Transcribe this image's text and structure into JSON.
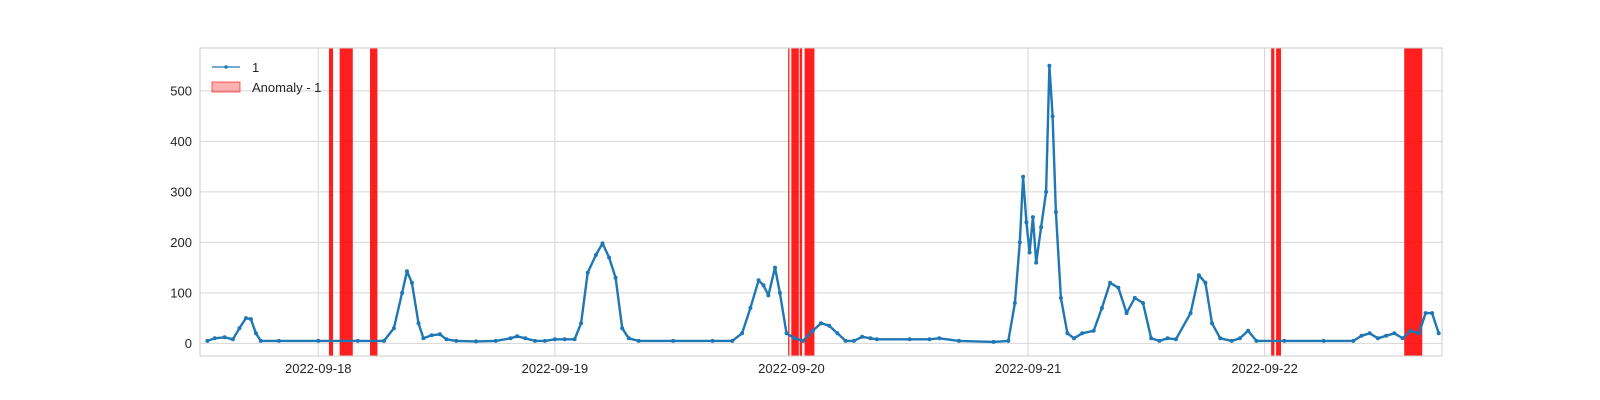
{
  "chart_data": {
    "type": "line",
    "title": "",
    "xlabel": "",
    "ylabel": "",
    "xlim": [
      "2022-09-17T12:00",
      "2022-09-22T18:00"
    ],
    "ylim": [
      -25,
      585
    ],
    "grid": true,
    "legend_placement": "top-left",
    "x_ticks": [
      "2022-09-18",
      "2022-09-19",
      "2022-09-20",
      "2022-09-21",
      "2022-09-22"
    ],
    "y_ticks": [
      0,
      100,
      200,
      300,
      400,
      500
    ],
    "colors": {
      "series": "#1f77b4",
      "anomaly": "#ff0000"
    },
    "series": [
      {
        "name": "1",
        "marker": "dot",
        "points": [
          [
            "2022-09-17T12:45",
            5
          ],
          [
            "2022-09-17T13:30",
            10
          ],
          [
            "2022-09-17T14:30",
            12
          ],
          [
            "2022-09-17T15:20",
            8
          ],
          [
            "2022-09-17T16:00",
            30
          ],
          [
            "2022-09-17T16:40",
            50
          ],
          [
            "2022-09-17T17:10",
            48
          ],
          [
            "2022-09-17T17:40",
            20
          ],
          [
            "2022-09-17T18:10",
            5
          ],
          [
            "2022-09-17T20:00",
            5
          ],
          [
            "2022-09-18T00:00",
            5
          ],
          [
            "2022-09-18T04:00",
            5
          ],
          [
            "2022-09-18T06:40",
            5
          ],
          [
            "2022-09-18T07:40",
            30
          ],
          [
            "2022-09-18T08:30",
            100
          ],
          [
            "2022-09-18T09:00",
            143
          ],
          [
            "2022-09-18T09:30",
            120
          ],
          [
            "2022-09-18T10:10",
            40
          ],
          [
            "2022-09-18T10:40",
            10
          ],
          [
            "2022-09-18T11:30",
            16
          ],
          [
            "2022-09-18T12:20",
            18
          ],
          [
            "2022-09-18T13:00",
            8
          ],
          [
            "2022-09-18T14:00",
            5
          ],
          [
            "2022-09-18T16:00",
            4
          ],
          [
            "2022-09-18T18:00",
            5
          ],
          [
            "2022-09-18T19:30",
            10
          ],
          [
            "2022-09-18T20:10",
            14
          ],
          [
            "2022-09-18T21:00",
            10
          ],
          [
            "2022-09-18T22:00",
            5
          ],
          [
            "2022-09-18T23:00",
            5
          ],
          [
            "2022-09-19T00:00",
            8
          ],
          [
            "2022-09-19T01:00",
            8
          ],
          [
            "2022-09-19T02:00",
            8
          ],
          [
            "2022-09-19T02:40",
            40
          ],
          [
            "2022-09-19T03:20",
            140
          ],
          [
            "2022-09-19T04:10",
            175
          ],
          [
            "2022-09-19T04:50",
            198
          ],
          [
            "2022-09-19T05:30",
            170
          ],
          [
            "2022-09-19T06:10",
            130
          ],
          [
            "2022-09-19T06:50",
            30
          ],
          [
            "2022-09-19T07:30",
            10
          ],
          [
            "2022-09-19T08:30",
            5
          ],
          [
            "2022-09-19T12:00",
            5
          ],
          [
            "2022-09-19T16:00",
            5
          ],
          [
            "2022-09-19T18:00",
            5
          ],
          [
            "2022-09-19T19:00",
            20
          ],
          [
            "2022-09-19T19:50",
            70
          ],
          [
            "2022-09-19T20:40",
            125
          ],
          [
            "2022-09-19T21:10",
            115
          ],
          [
            "2022-09-19T21:40",
            95
          ],
          [
            "2022-09-19T22:20",
            150
          ],
          [
            "2022-09-19T22:50",
            100
          ],
          [
            "2022-09-19T23:30",
            20
          ],
          [
            "2022-09-20T00:20",
            10
          ],
          [
            "2022-09-20T01:10",
            5
          ],
          [
            "2022-09-20T02:10",
            25
          ],
          [
            "2022-09-20T03:00",
            40
          ],
          [
            "2022-09-20T03:50",
            35
          ],
          [
            "2022-09-20T04:40",
            20
          ],
          [
            "2022-09-20T05:30",
            5
          ],
          [
            "2022-09-20T06:20",
            5
          ],
          [
            "2022-09-20T07:10",
            13
          ],
          [
            "2022-09-20T08:00",
            10
          ],
          [
            "2022-09-20T08:40",
            8
          ],
          [
            "2022-09-20T12:00",
            8
          ],
          [
            "2022-09-20T14:00",
            8
          ],
          [
            "2022-09-20T15:00",
            10
          ],
          [
            "2022-09-20T17:00",
            5
          ],
          [
            "2022-09-20T20:30",
            3
          ],
          [
            "2022-09-20T22:00",
            5
          ],
          [
            "2022-09-20T22:40",
            80
          ],
          [
            "2022-09-20T23:10",
            200
          ],
          [
            "2022-09-20T23:30",
            330
          ],
          [
            "2022-09-20T23:50",
            240
          ],
          [
            "2022-09-21T00:10",
            180
          ],
          [
            "2022-09-21T00:30",
            250
          ],
          [
            "2022-09-21T00:50",
            160
          ],
          [
            "2022-09-21T01:20",
            230
          ],
          [
            "2022-09-21T01:50",
            300
          ],
          [
            "2022-09-21T02:10",
            550
          ],
          [
            "2022-09-21T02:30",
            450
          ],
          [
            "2022-09-21T02:50",
            260
          ],
          [
            "2022-09-21T03:20",
            90
          ],
          [
            "2022-09-21T04:00",
            20
          ],
          [
            "2022-09-21T04:40",
            10
          ],
          [
            "2022-09-21T05:30",
            20
          ],
          [
            "2022-09-21T06:40",
            25
          ],
          [
            "2022-09-21T07:30",
            70
          ],
          [
            "2022-09-21T08:20",
            120
          ],
          [
            "2022-09-21T09:10",
            110
          ],
          [
            "2022-09-21T10:00",
            60
          ],
          [
            "2022-09-21T10:50",
            90
          ],
          [
            "2022-09-21T11:40",
            80
          ],
          [
            "2022-09-21T12:30",
            10
          ],
          [
            "2022-09-21T13:20",
            5
          ],
          [
            "2022-09-21T14:10",
            10
          ],
          [
            "2022-09-21T15:00",
            8
          ],
          [
            "2022-09-21T16:30",
            60
          ],
          [
            "2022-09-21T17:20",
            135
          ],
          [
            "2022-09-21T18:00",
            120
          ],
          [
            "2022-09-21T18:40",
            40
          ],
          [
            "2022-09-21T19:30",
            10
          ],
          [
            "2022-09-21T20:40",
            5
          ],
          [
            "2022-09-21T21:30",
            10
          ],
          [
            "2022-09-21T22:20",
            25
          ],
          [
            "2022-09-21T23:10",
            5
          ],
          [
            "2022-09-22T02:00",
            5
          ],
          [
            "2022-09-22T06:00",
            5
          ],
          [
            "2022-09-22T09:00",
            5
          ],
          [
            "2022-09-22T09:50",
            15
          ],
          [
            "2022-09-22T10:40",
            20
          ],
          [
            "2022-09-22T11:30",
            10
          ],
          [
            "2022-09-22T12:20",
            15
          ],
          [
            "2022-09-22T13:10",
            20
          ],
          [
            "2022-09-22T14:00",
            10
          ],
          [
            "2022-09-22T14:50",
            25
          ],
          [
            "2022-09-22T15:40",
            20
          ],
          [
            "2022-09-22T16:20",
            60
          ],
          [
            "2022-09-22T17:00",
            60
          ],
          [
            "2022-09-22T17:40",
            20
          ]
        ]
      }
    ],
    "anomaly_label": "Anomaly - 1",
    "anomaly_regions": [
      [
        "2022-09-18T01:05",
        "2022-09-18T01:30"
      ],
      [
        "2022-09-18T02:10",
        "2022-09-18T03:30"
      ],
      [
        "2022-09-18T05:15",
        "2022-09-18T06:00"
      ],
      [
        "2022-09-19T23:40",
        "2022-09-19T23:48"
      ],
      [
        "2022-09-20T00:00",
        "2022-09-20T00:45"
      ],
      [
        "2022-09-20T00:50",
        "2022-09-20T01:05"
      ],
      [
        "2022-09-20T01:20",
        "2022-09-20T02:20"
      ],
      [
        "2022-09-22T00:40",
        "2022-09-22T01:00"
      ],
      [
        "2022-09-22T01:10",
        "2022-09-22T01:40"
      ],
      [
        "2022-09-22T14:10",
        "2022-09-22T16:00"
      ]
    ]
  }
}
